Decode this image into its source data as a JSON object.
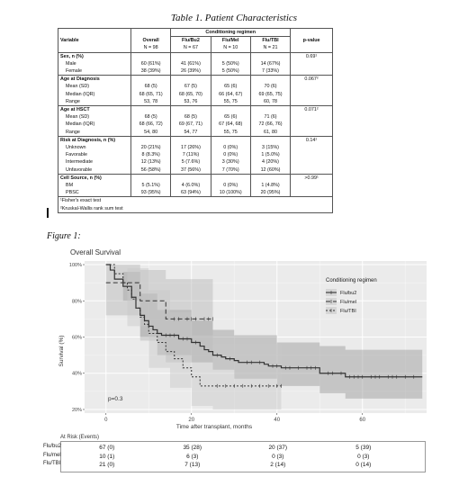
{
  "table": {
    "title": "Table 1. Patient Characteristics",
    "header": {
      "variable": "Variable",
      "overall": "Overall",
      "overall_n": "N = 98",
      "conditioning": "Conditioning regimen",
      "flu_bu2": "Flu/Bu2",
      "flu_bu2_n": "N = 67",
      "flu_mel": "Flu/Mel",
      "flu_mel_n": "N = 10",
      "flu_tbi": "Flu/TBI",
      "flu_tbi_n": "N = 21",
      "pvalue": "p-value"
    },
    "rows": [
      {
        "label": "Sex, n (%)",
        "group": true,
        "p": "0.69¹"
      },
      {
        "label": "Male",
        "cells": [
          "60 (61%)",
          "41 (61%)",
          "5 (50%)",
          "14 (67%)"
        ]
      },
      {
        "label": "Female",
        "cells": [
          "38 (39%)",
          "26 (39%)",
          "5 (50%)",
          "7 (33%)"
        ]
      },
      {
        "label": "Age at Diagnosis",
        "group": true,
        "p": "0.067²"
      },
      {
        "label": "Mean (SD)",
        "cells": [
          "68 (5)",
          "67 (5)",
          "65 (6)",
          "70 (6)"
        ]
      },
      {
        "label": "Median (IQR)",
        "cells": [
          "68 (65, 71)",
          "68 (65, 70)",
          "66 (64, 67)",
          "69 (65, 75)"
        ]
      },
      {
        "label": "Range",
        "cells": [
          "53, 78",
          "53, 76",
          "55, 75",
          "60, 78"
        ]
      },
      {
        "label": "Age at HSCT",
        "group": true,
        "p": "0.071²"
      },
      {
        "label": "Mean (SD)",
        "cells": [
          "68 (5)",
          "68 (5)",
          "65 (6)",
          "71 (6)"
        ]
      },
      {
        "label": "Median (IQR)",
        "cells": [
          "68 (66, 72)",
          "69 (67, 71)",
          "67 (64, 68)",
          "72 (66, 76)"
        ]
      },
      {
        "label": "Range",
        "cells": [
          "54, 80",
          "54, 77",
          "55, 75",
          "61, 80"
        ]
      },
      {
        "label": "Risk at Diagnosis, n (%)",
        "group": true,
        "p": "0.14¹"
      },
      {
        "label": "Unknown",
        "cells": [
          "20 (21%)",
          "17 (26%)",
          "0 (0%)",
          "3 (15%)"
        ]
      },
      {
        "label": "Favorable",
        "cells": [
          "8 (8.3%)",
          "7 (11%)",
          "0 (0%)",
          "1 (5.0%)"
        ]
      },
      {
        "label": "Intermediate",
        "cells": [
          "12 (13%)",
          "5 (7.6%)",
          "3 (30%)",
          "4 (20%)"
        ]
      },
      {
        "label": "Unfavorable",
        "cells": [
          "56 (58%)",
          "37 (56%)",
          "7 (70%)",
          "12 (60%)"
        ]
      },
      {
        "label": "Cell Source, n (%)",
        "group": true,
        "p": ">0.99¹"
      },
      {
        "label": "BM",
        "cells": [
          "5 (5.1%)",
          "4 (6.0%)",
          "0 (0%)",
          "1 (4.8%)"
        ]
      },
      {
        "label": "PBSC",
        "cells": [
          "93 (95%)",
          "63 (94%)",
          "10 (100%)",
          "20 (95%)"
        ]
      }
    ],
    "footnotes": [
      "¹Fisher's exact test",
      "²Kruskal-Wallis rank sum test"
    ]
  },
  "figure": {
    "caption": "Figure 1:",
    "chart_data": {
      "type": "line",
      "title": "Overall Survival",
      "xlabel": "Time after transplant, months",
      "ylabel": "Survival (%)",
      "xlim": [
        -5,
        75
      ],
      "ylim": [
        18,
        102
      ],
      "xticks": [
        "0",
        "20",
        "40",
        "60"
      ],
      "yticks": [
        "100%",
        "80%",
        "60%",
        "40%",
        "20%"
      ],
      "grid": true,
      "legend_title": "Conditioning regimen",
      "legend_position": "top-right",
      "annotation": "p=0.3",
      "series": [
        {
          "name": "Flu/bu2",
          "color": "#333333",
          "dash": "solid",
          "steps": [
            [
              0,
              100
            ],
            [
              1,
              97
            ],
            [
              2,
              92
            ],
            [
              4,
              88
            ],
            [
              6,
              82
            ],
            [
              7,
              76
            ],
            [
              8,
              72
            ],
            [
              9,
              69
            ],
            [
              10,
              66
            ],
            [
              11,
              64
            ],
            [
              12,
              62
            ],
            [
              13,
              61
            ],
            [
              17,
              59
            ],
            [
              20,
              57
            ],
            [
              22,
              55
            ],
            [
              23,
              53
            ],
            [
              24,
              52
            ],
            [
              25,
              50
            ],
            [
              27,
              49
            ],
            [
              28,
              48
            ],
            [
              30,
              47
            ],
            [
              31,
              46
            ],
            [
              37,
              45
            ],
            [
              38,
              44
            ],
            [
              41,
              43
            ],
            [
              44,
              43
            ],
            [
              50,
              40
            ],
            [
              56,
              38
            ],
            [
              61,
              38
            ],
            [
              74,
              38
            ]
          ],
          "censor": [
            14,
            15,
            16,
            18,
            19,
            21,
            26,
            29,
            33,
            34,
            36,
            39,
            40,
            42,
            43,
            45,
            47,
            48,
            49,
            52,
            53,
            55,
            57,
            58,
            59,
            60,
            62,
            63,
            64,
            66,
            67,
            68,
            70,
            72
          ],
          "band": [
            [
              0,
              100,
              100
            ],
            [
              4,
              96,
              80
            ],
            [
              8,
              84,
              60
            ],
            [
              12,
              75,
              50
            ],
            [
              20,
              69,
              46
            ],
            [
              25,
              64,
              42
            ],
            [
              30,
              61,
              37
            ],
            [
              40,
              57,
              33
            ],
            [
              50,
              55,
              29
            ],
            [
              56,
              53,
              26
            ],
            [
              74,
              53,
              26
            ]
          ]
        },
        {
          "name": "Flu/mel",
          "color": "#333333",
          "dash": "5,3",
          "steps": [
            [
              0,
              90
            ],
            [
              8,
              80
            ],
            [
              14,
              70
            ],
            [
              25,
              70
            ]
          ],
          "censor": [
            16,
            17,
            19,
            20,
            21,
            23,
            24,
            25
          ],
          "band": [
            [
              0,
              100,
              72
            ],
            [
              8,
              97,
              58
            ],
            [
              14,
              92,
              46
            ],
            [
              25,
              92,
              46
            ]
          ]
        },
        {
          "name": "Flu/TBI",
          "color": "#333333",
          "dash": "2,2",
          "steps": [
            [
              0,
              100
            ],
            [
              2,
              95
            ],
            [
              4,
              90
            ],
            [
              5,
              86
            ],
            [
              6,
              81
            ],
            [
              7,
              76
            ],
            [
              8,
              71
            ],
            [
              9,
              67
            ],
            [
              10,
              62
            ],
            [
              12,
              57
            ],
            [
              14,
              52
            ],
            [
              16,
              48
            ],
            [
              18,
              43
            ],
            [
              20,
              38
            ],
            [
              22,
              33
            ],
            [
              41,
              33
            ]
          ],
          "censor": [
            26,
            28,
            30,
            32,
            34,
            36,
            38,
            40,
            41
          ],
          "band": [
            [
              0,
              100,
              100
            ],
            [
              5,
              98,
              66
            ],
            [
              10,
              86,
              43
            ],
            [
              15,
              74,
              32
            ],
            [
              20,
              61,
              22
            ],
            [
              25,
              56,
              20
            ],
            [
              41,
              56,
              20
            ]
          ]
        }
      ]
    },
    "at_risk": {
      "title": "At Risk (Events)",
      "rows": [
        {
          "label": "Flu/bu2",
          "values": [
            "67 (0)",
            "35 (28)",
            "20 (37)",
            "5 (39)"
          ]
        },
        {
          "label": "Flu/mel",
          "values": [
            "10 (1)",
            "6 (3)",
            "0 (3)",
            "0 (3)"
          ]
        },
        {
          "label": "Flu/TBI",
          "values": [
            "21 (0)",
            "7 (13)",
            "2 (14)",
            "0 (14)"
          ]
        }
      ]
    }
  }
}
